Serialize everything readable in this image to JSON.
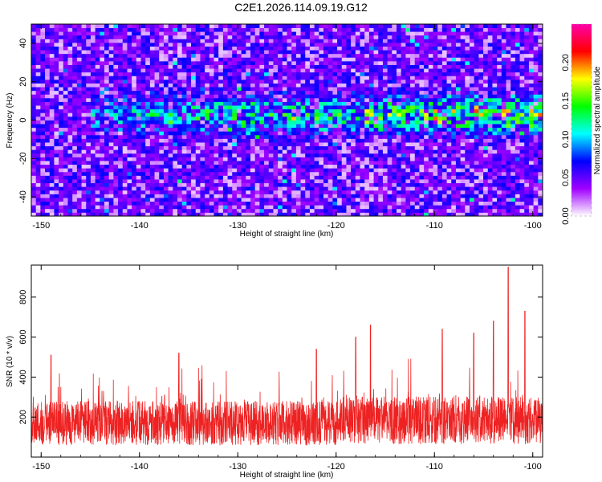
{
  "title": "C2E1.2026.114.09.19.G12",
  "chart_data": [
    {
      "type": "heatmap",
      "name": "spectrogram",
      "xlabel": "Height of straight line (km)",
      "ylabel": "Frequency (Hz)",
      "xlim": [
        -151,
        -99
      ],
      "ylim": [
        -50,
        50
      ],
      "xticks": [
        -150,
        -140,
        -130,
        -120,
        -110,
        -100
      ],
      "yticks": [
        -40,
        -20,
        0,
        20,
        40
      ],
      "colorbar": {
        "label": "Normalized spectral amplitude",
        "range": [
          0.0,
          0.25
        ],
        "ticks": [
          "0.00",
          "0.05",
          "0.10",
          "0.15",
          "0.20"
        ],
        "tick_values": [
          0.0,
          0.05,
          0.1,
          0.15,
          0.2
        ],
        "colors": [
          "#ffffff",
          "#a000ff",
          "#0000ff",
          "#00ffff",
          "#00ff00",
          "#ffff00",
          "#ff0000",
          "#ff00aa"
        ]
      },
      "feature": {
        "description_band_center_hz": 3,
        "band_width_hz": 12,
        "band_start_km": -145
      }
    },
    {
      "type": "line",
      "name": "snr",
      "xlabel": "Height of straight line (km)",
      "ylabel": "SNR (10 * v/v)",
      "xlim": [
        -151,
        -99
      ],
      "ylim": [
        0,
        960
      ],
      "xticks": [
        -150,
        -140,
        -130,
        -120,
        -110,
        -100
      ],
      "yticks": [
        200,
        400,
        600,
        800
      ],
      "line_color": "#ee2222",
      "baseline_mean": 170,
      "peaks": [
        {
          "x": -102.5,
          "y": 950
        },
        {
          "x": -104.0,
          "y": 680
        },
        {
          "x": -100.8,
          "y": 730
        },
        {
          "x": -106.0,
          "y": 620
        },
        {
          "x": -109.2,
          "y": 640
        },
        {
          "x": -116.5,
          "y": 660
        },
        {
          "x": -118.0,
          "y": 600
        },
        {
          "x": -149.0,
          "y": 510
        },
        {
          "x": -136.0,
          "y": 520
        },
        {
          "x": -122.0,
          "y": 540
        }
      ]
    }
  ]
}
